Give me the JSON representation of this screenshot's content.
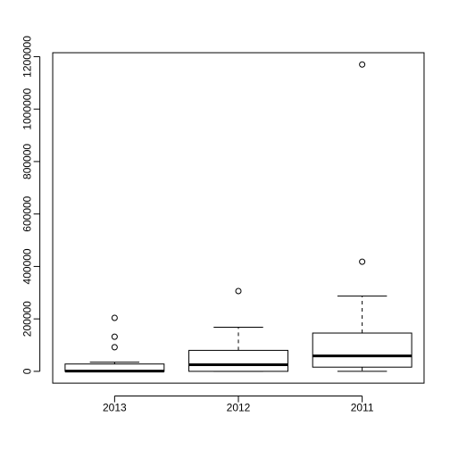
{
  "chart_data": {
    "type": "box",
    "categories": [
      "2013",
      "2012",
      "2011"
    ],
    "series": [
      {
        "category": "2013",
        "whisker_low": 0,
        "q1": 0,
        "median": 1000,
        "q3": 28000,
        "whisker_high": 35000,
        "outliers": [
          92000,
          132000,
          204000
        ]
      },
      {
        "category": "2012",
        "whisker_low": 0,
        "q1": 0,
        "median": 25000,
        "q3": 80000,
        "whisker_high": 168000,
        "outliers": [
          306000
        ]
      },
      {
        "category": "2011",
        "whisker_low": 0,
        "q1": 16000,
        "median": 59000,
        "q3": 146000,
        "whisker_high": 287000,
        "outliers": [
          418000,
          1170000
        ]
      }
    ],
    "y_ticks": [
      0,
      200000,
      400000,
      600000,
      800000,
      1000000,
      1200000
    ],
    "y_tick_labels": [
      "0",
      "200000",
      "400000",
      "600000",
      "800000",
      "1000000",
      "1200000"
    ],
    "ylim": [
      -45000,
      1215000
    ],
    "title": "",
    "xlabel": "",
    "ylabel": "",
    "grid": false,
    "colors": {
      "stroke": "#000000",
      "box_fill": "#ffffff",
      "background": "#ffffff"
    }
  }
}
